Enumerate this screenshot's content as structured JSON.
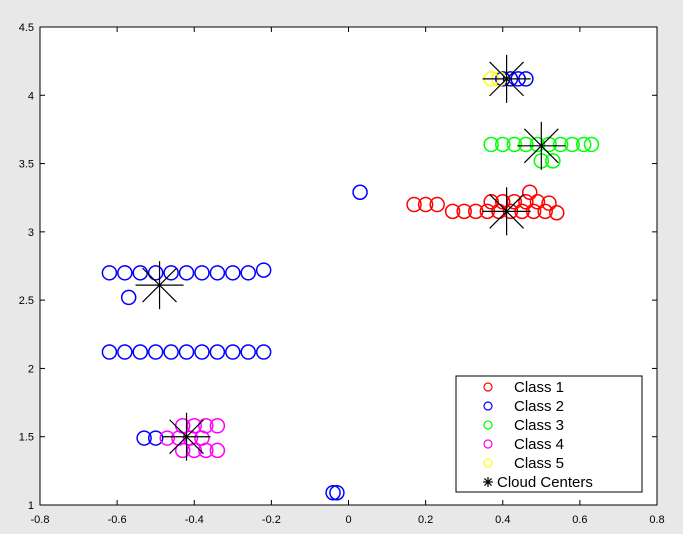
{
  "chart_data": {
    "type": "scatter",
    "title": "",
    "xlabel": "",
    "ylabel": "",
    "xlim": [
      -0.8,
      0.8
    ],
    "ylim": [
      1,
      4.5
    ],
    "xticks": [
      "-0.8",
      "-0.6",
      "-0.4",
      "-0.2",
      "0",
      "0.2",
      "0.4",
      "0.6",
      "0.8"
    ],
    "yticks": [
      "1",
      "1.5",
      "2",
      "2.5",
      "3",
      "3.5",
      "4",
      "4.5"
    ],
    "grid": false,
    "legend_position": "bottom-right",
    "series": [
      {
        "name": "Class 1",
        "color": "#ff0000",
        "marker": "circle",
        "points": [
          {
            "x": 0.17,
            "y": 3.2
          },
          {
            "x": 0.2,
            "y": 3.2
          },
          {
            "x": 0.23,
            "y": 3.2
          },
          {
            "x": 0.27,
            "y": 3.15
          },
          {
            "x": 0.3,
            "y": 3.15
          },
          {
            "x": 0.33,
            "y": 3.15
          },
          {
            "x": 0.36,
            "y": 3.15
          },
          {
            "x": 0.39,
            "y": 3.15
          },
          {
            "x": 0.42,
            "y": 3.15
          },
          {
            "x": 0.45,
            "y": 3.15
          },
          {
            "x": 0.48,
            "y": 3.15
          },
          {
            "x": 0.51,
            "y": 3.15
          },
          {
            "x": 0.54,
            "y": 3.14
          },
          {
            "x": 0.37,
            "y": 3.22
          },
          {
            "x": 0.4,
            "y": 3.22
          },
          {
            "x": 0.43,
            "y": 3.22
          },
          {
            "x": 0.46,
            "y": 3.22
          },
          {
            "x": 0.49,
            "y": 3.22
          },
          {
            "x": 0.52,
            "y": 3.21
          },
          {
            "x": 0.47,
            "y": 3.29
          }
        ]
      },
      {
        "name": "Class 2",
        "color": "#0000ff",
        "marker": "circle",
        "points": [
          {
            "x": -0.62,
            "y": 2.7
          },
          {
            "x": -0.58,
            "y": 2.7
          },
          {
            "x": -0.54,
            "y": 2.7
          },
          {
            "x": -0.5,
            "y": 2.7
          },
          {
            "x": -0.46,
            "y": 2.7
          },
          {
            "x": -0.42,
            "y": 2.7
          },
          {
            "x": -0.38,
            "y": 2.7
          },
          {
            "x": -0.34,
            "y": 2.7
          },
          {
            "x": -0.3,
            "y": 2.7
          },
          {
            "x": -0.26,
            "y": 2.7
          },
          {
            "x": -0.22,
            "y": 2.72
          },
          {
            "x": -0.57,
            "y": 2.52
          },
          {
            "x": -0.62,
            "y": 2.12
          },
          {
            "x": -0.58,
            "y": 2.12
          },
          {
            "x": -0.54,
            "y": 2.12
          },
          {
            "x": -0.5,
            "y": 2.12
          },
          {
            "x": -0.46,
            "y": 2.12
          },
          {
            "x": -0.42,
            "y": 2.12
          },
          {
            "x": -0.38,
            "y": 2.12
          },
          {
            "x": -0.34,
            "y": 2.12
          },
          {
            "x": -0.3,
            "y": 2.12
          },
          {
            "x": -0.26,
            "y": 2.12
          },
          {
            "x": -0.22,
            "y": 2.12
          },
          {
            "x": -0.53,
            "y": 1.49
          },
          {
            "x": -0.5,
            "y": 1.49
          },
          {
            "x": -0.04,
            "y": 1.09
          },
          {
            "x": -0.03,
            "y": 1.09
          },
          {
            "x": 0.03,
            "y": 3.29
          },
          {
            "x": 0.4,
            "y": 4.12
          },
          {
            "x": 0.42,
            "y": 4.12
          },
          {
            "x": 0.44,
            "y": 4.12
          },
          {
            "x": 0.46,
            "y": 4.12
          }
        ]
      },
      {
        "name": "Class 3",
        "color": "#00ff00",
        "marker": "circle",
        "points": [
          {
            "x": 0.37,
            "y": 3.64
          },
          {
            "x": 0.4,
            "y": 3.64
          },
          {
            "x": 0.43,
            "y": 3.64
          },
          {
            "x": 0.46,
            "y": 3.64
          },
          {
            "x": 0.49,
            "y": 3.64
          },
          {
            "x": 0.52,
            "y": 3.64
          },
          {
            "x": 0.55,
            "y": 3.64
          },
          {
            "x": 0.58,
            "y": 3.64
          },
          {
            "x": 0.61,
            "y": 3.64
          },
          {
            "x": 0.63,
            "y": 3.64
          },
          {
            "x": 0.5,
            "y": 3.52
          },
          {
            "x": 0.53,
            "y": 3.52
          }
        ]
      },
      {
        "name": "Class 4",
        "color": "#ff00ff",
        "marker": "circle",
        "points": [
          {
            "x": -0.47,
            "y": 1.49
          },
          {
            "x": -0.44,
            "y": 1.49
          },
          {
            "x": -0.41,
            "y": 1.49
          },
          {
            "x": -0.38,
            "y": 1.49
          },
          {
            "x": -0.43,
            "y": 1.58
          },
          {
            "x": -0.4,
            "y": 1.58
          },
          {
            "x": -0.37,
            "y": 1.58
          },
          {
            "x": -0.34,
            "y": 1.58
          },
          {
            "x": -0.43,
            "y": 1.4
          },
          {
            "x": -0.4,
            "y": 1.4
          },
          {
            "x": -0.37,
            "y": 1.4
          },
          {
            "x": -0.34,
            "y": 1.4
          }
        ]
      },
      {
        "name": "Class 5",
        "color": "#ffff00",
        "marker": "circle",
        "points": [
          {
            "x": 0.37,
            "y": 4.12
          },
          {
            "x": 0.39,
            "y": 4.12
          }
        ]
      },
      {
        "name": "Cloud Centers",
        "color": "#000000",
        "marker": "asterisk",
        "points": [
          {
            "x": 0.41,
            "y": 4.12
          },
          {
            "x": 0.5,
            "y": 3.63
          },
          {
            "x": 0.41,
            "y": 3.15
          },
          {
            "x": -0.49,
            "y": 2.61
          },
          {
            "x": -0.42,
            "y": 1.5
          }
        ]
      }
    ]
  }
}
